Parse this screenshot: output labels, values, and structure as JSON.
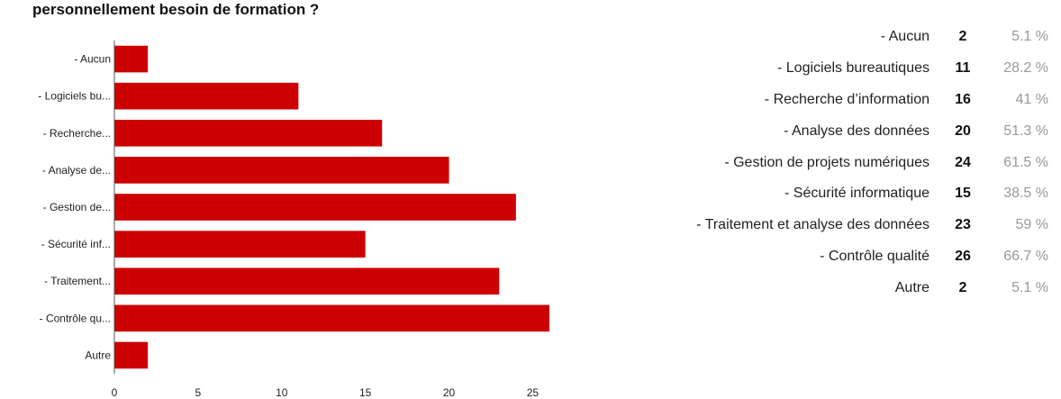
{
  "question_title": "personnellement besoin de formation ?",
  "colors": {
    "bar": "#cc0000",
    "axis": "#555555",
    "text": "#222222"
  },
  "chart_data": {
    "type": "bar",
    "orientation": "horizontal",
    "title": "personnellement besoin de formation ?",
    "categories": [
      "- Aucun",
      "- Logiciels bu...",
      "- Recherche...",
      "- Analyse de...",
      "- Gestion de...",
      "- Sécurité inf...",
      "- Traitement...",
      "- Contrôle qu...",
      "Autre"
    ],
    "values": [
      2,
      11,
      16,
      20,
      24,
      15,
      23,
      26,
      2
    ],
    "xlim": [
      0,
      26
    ],
    "x_ticks": [
      0,
      5,
      10,
      15,
      20,
      25
    ],
    "grid": false,
    "legend": "none"
  },
  "summary_rows": [
    {
      "label": "- Aucun",
      "count": "2",
      "percent": "5.1 %"
    },
    {
      "label": "- Logiciels bureautiques",
      "count": "11",
      "percent": "28.2 %"
    },
    {
      "label": "- Recherche d’information",
      "count": "16",
      "percent": "41 %"
    },
    {
      "label": "- Analyse des données",
      "count": "20",
      "percent": "51.3 %"
    },
    {
      "label": "- Gestion de projets numériques",
      "count": "24",
      "percent": "61.5 %"
    },
    {
      "label": "- Sécurité informatique",
      "count": "15",
      "percent": "38.5 %"
    },
    {
      "label": "- Traitement et analyse des données",
      "count": "23",
      "percent": "59 %"
    },
    {
      "label": "- Contrôle qualité",
      "count": "26",
      "percent": "66.7 %"
    },
    {
      "label": "Autre",
      "count": "2",
      "percent": "5.1 %"
    }
  ]
}
